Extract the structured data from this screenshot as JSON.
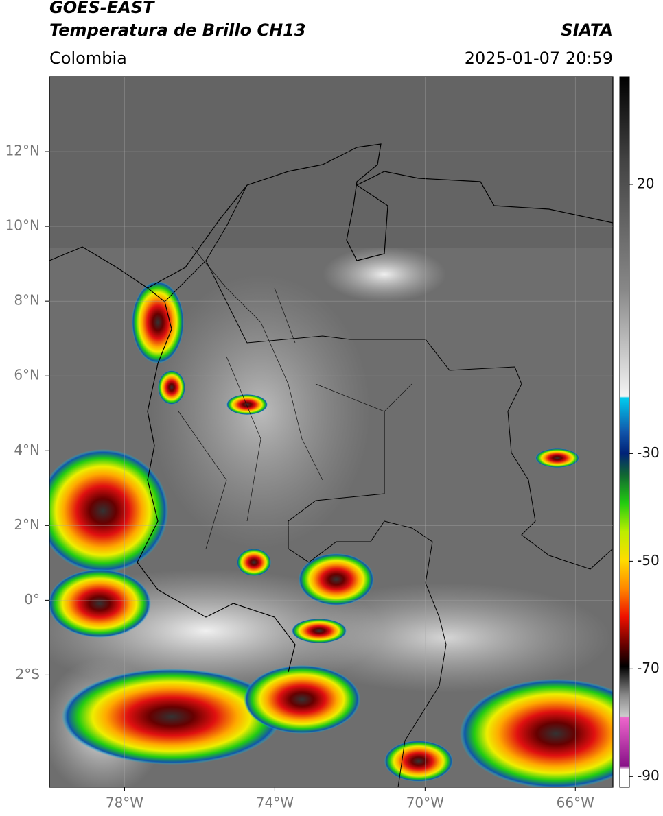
{
  "header": {
    "satellite": "GOES-EAST",
    "product": "Temperatura de Brillo CH13",
    "region": "Colombia",
    "source": "SIATA",
    "timestamp": "2025-01-07 20:59"
  },
  "map": {
    "xlim": [
      -80,
      -65
    ],
    "ylim": [
      -5,
      14
    ],
    "xticks": [
      {
        "value": -78,
        "label": "78°W"
      },
      {
        "value": -74,
        "label": "74°W"
      },
      {
        "value": -70,
        "label": "70°W"
      },
      {
        "value": -66,
        "label": "66°W"
      }
    ],
    "yticks": [
      {
        "value": 12,
        "label": "12°N"
      },
      {
        "value": 10,
        "label": "10°N"
      },
      {
        "value": 8,
        "label": "8°N"
      },
      {
        "value": 6,
        "label": "6°N"
      },
      {
        "value": 4,
        "label": "4°N"
      },
      {
        "value": 2,
        "label": "2°N"
      },
      {
        "value": 0,
        "label": "0°"
      },
      {
        "value": -2,
        "label": "2°S"
      }
    ]
  },
  "colorbar": {
    "lim": [
      -92,
      40
    ],
    "ticks": [
      20,
      -30,
      -50,
      -70,
      -90
    ]
  }
}
